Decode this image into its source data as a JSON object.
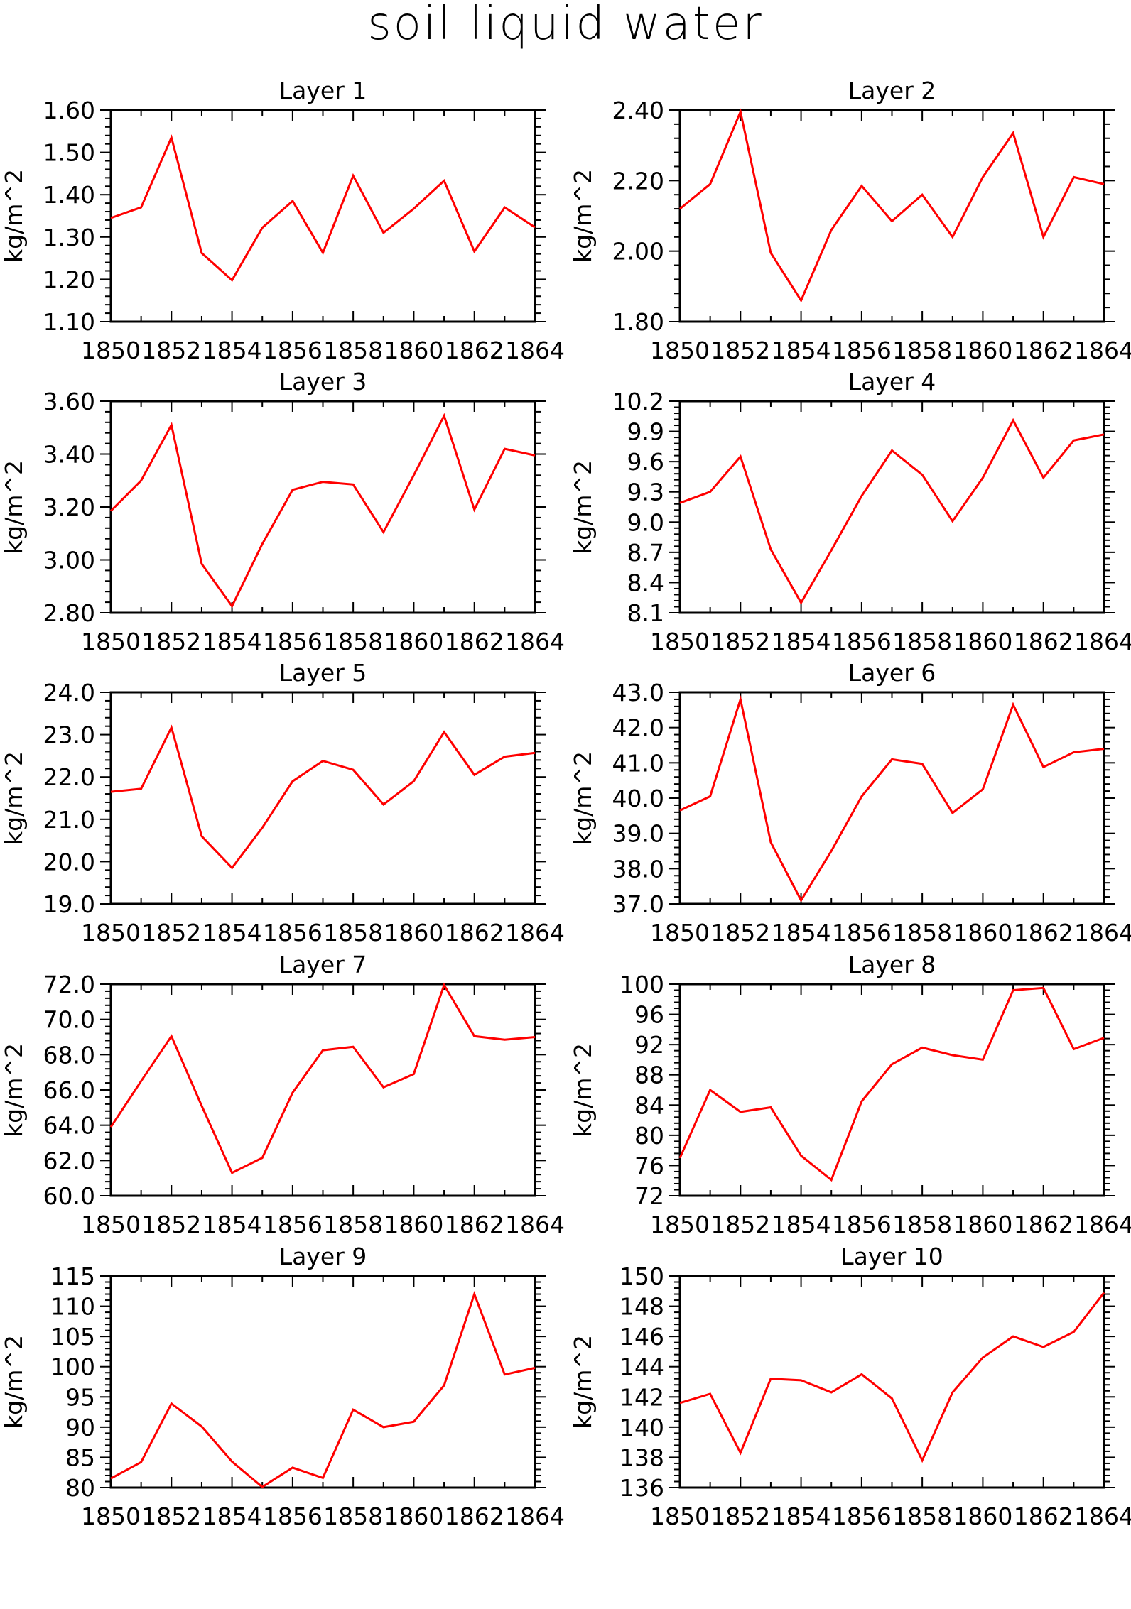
{
  "title": "soil liquid water",
  "chart_data": [
    {
      "type": "line",
      "title": "Layer 1",
      "ylabel": "kg/m^2",
      "x": [
        1850,
        1851,
        1852,
        1853,
        1854,
        1855,
        1856,
        1857,
        1858,
        1859,
        1860,
        1861,
        1862,
        1863,
        1864
      ],
      "x_ticks": [
        1850,
        1852,
        1854,
        1856,
        1858,
        1860,
        1862,
        1864
      ],
      "ylim": [
        1.1,
        1.6
      ],
      "y_ticks": [
        "1.10",
        "1.20",
        "1.30",
        "1.40",
        "1.50",
        "1.60"
      ],
      "series": [
        {
          "color": "#ff0000",
          "values": [
            1.345,
            1.37,
            1.535,
            1.262,
            1.198,
            1.322,
            1.385,
            1.263,
            1.445,
            1.31,
            1.367,
            1.433,
            1.266,
            1.37,
            1.323
          ]
        }
      ]
    },
    {
      "type": "line",
      "title": "Layer 2",
      "ylabel": "kg/m^2",
      "x": [
        1850,
        1851,
        1852,
        1853,
        1854,
        1855,
        1856,
        1857,
        1858,
        1859,
        1860,
        1861,
        1862,
        1863,
        1864
      ],
      "x_ticks": [
        1850,
        1852,
        1854,
        1856,
        1858,
        1860,
        1862,
        1864
      ],
      "ylim": [
        1.8,
        2.4
      ],
      "y_ticks": [
        "1.80",
        "2.00",
        "2.20",
        "2.40"
      ],
      "series": [
        {
          "color": "#ff0000",
          "values": [
            2.12,
            2.19,
            2.395,
            1.995,
            1.86,
            2.06,
            2.185,
            2.085,
            2.16,
            2.04,
            2.21,
            2.335,
            2.04,
            2.21,
            2.19
          ]
        }
      ]
    },
    {
      "type": "line",
      "title": "Layer 3",
      "ylabel": "kg/m^2",
      "x": [
        1850,
        1851,
        1852,
        1853,
        1854,
        1855,
        1856,
        1857,
        1858,
        1859,
        1860,
        1861,
        1862,
        1863,
        1864
      ],
      "x_ticks": [
        1850,
        1852,
        1854,
        1856,
        1858,
        1860,
        1862,
        1864
      ],
      "ylim": [
        2.8,
        3.6
      ],
      "y_ticks": [
        "2.80",
        "3.00",
        "3.20",
        "3.40",
        "3.60"
      ],
      "series": [
        {
          "color": "#ff0000",
          "values": [
            3.185,
            3.3,
            3.51,
            2.985,
            2.825,
            3.06,
            3.265,
            3.295,
            3.285,
            3.105,
            3.32,
            3.545,
            3.19,
            3.42,
            3.395
          ]
        }
      ]
    },
    {
      "type": "line",
      "title": "Layer 4",
      "ylabel": "kg/m^2",
      "x": [
        1850,
        1851,
        1852,
        1853,
        1854,
        1855,
        1856,
        1857,
        1858,
        1859,
        1860,
        1861,
        1862,
        1863,
        1864
      ],
      "x_ticks": [
        1850,
        1852,
        1854,
        1856,
        1858,
        1860,
        1862,
        1864
      ],
      "ylim": [
        8.1,
        10.2
      ],
      "y_ticks": [
        "8.1",
        "8.4",
        "8.7",
        "9.0",
        "9.3",
        "9.6",
        "9.9",
        "10.2"
      ],
      "series": [
        {
          "color": "#ff0000",
          "values": [
            9.19,
            9.3,
            9.65,
            8.73,
            8.2,
            8.72,
            9.26,
            9.71,
            9.47,
            9.01,
            9.44,
            10.01,
            9.44,
            9.81,
            9.87
          ]
        }
      ]
    },
    {
      "type": "line",
      "title": "Layer 5",
      "ylabel": "kg/m^2",
      "x": [
        1850,
        1851,
        1852,
        1853,
        1854,
        1855,
        1856,
        1857,
        1858,
        1859,
        1860,
        1861,
        1862,
        1863,
        1864
      ],
      "x_ticks": [
        1850,
        1852,
        1854,
        1856,
        1858,
        1860,
        1862,
        1864
      ],
      "ylim": [
        19.0,
        24.0
      ],
      "y_ticks": [
        "19.0",
        "20.0",
        "21.0",
        "22.0",
        "23.0",
        "24.0"
      ],
      "series": [
        {
          "color": "#ff0000",
          "values": [
            21.65,
            21.72,
            23.17,
            20.6,
            19.85,
            20.8,
            21.9,
            22.38,
            22.17,
            21.35,
            21.9,
            23.06,
            22.05,
            22.48,
            22.57
          ]
        }
      ]
    },
    {
      "type": "line",
      "title": "Layer 6",
      "ylabel": "kg/m^2",
      "x": [
        1850,
        1851,
        1852,
        1853,
        1854,
        1855,
        1856,
        1857,
        1858,
        1859,
        1860,
        1861,
        1862,
        1863,
        1864
      ],
      "x_ticks": [
        1850,
        1852,
        1854,
        1856,
        1858,
        1860,
        1862,
        1864
      ],
      "ylim": [
        37.0,
        43.0
      ],
      "y_ticks": [
        "37.0",
        "38.0",
        "39.0",
        "40.0",
        "41.0",
        "42.0",
        "43.0"
      ],
      "series": [
        {
          "color": "#ff0000",
          "values": [
            39.65,
            40.05,
            42.8,
            38.75,
            37.1,
            38.5,
            40.05,
            41.1,
            40.97,
            39.58,
            40.25,
            42.65,
            40.88,
            41.3,
            41.4
          ]
        }
      ]
    },
    {
      "type": "line",
      "title": "Layer 7",
      "ylabel": "kg/m^2",
      "x": [
        1850,
        1851,
        1852,
        1853,
        1854,
        1855,
        1856,
        1857,
        1858,
        1859,
        1860,
        1861,
        1862,
        1863,
        1864
      ],
      "x_ticks": [
        1850,
        1852,
        1854,
        1856,
        1858,
        1860,
        1862,
        1864
      ],
      "ylim": [
        60.0,
        72.0
      ],
      "y_ticks": [
        "60.0",
        "62.0",
        "64.0",
        "66.0",
        "68.0",
        "70.0",
        "72.0"
      ],
      "series": [
        {
          "color": "#ff0000",
          "values": [
            63.9,
            66.5,
            69.05,
            65.1,
            61.3,
            62.15,
            65.85,
            68.25,
            68.45,
            66.15,
            66.9,
            71.95,
            69.05,
            68.85,
            69.0
          ]
        }
      ]
    },
    {
      "type": "line",
      "title": "Layer 8",
      "ylabel": "kg/m^2",
      "x": [
        1850,
        1851,
        1852,
        1853,
        1854,
        1855,
        1856,
        1857,
        1858,
        1859,
        1860,
        1861,
        1862,
        1863,
        1864
      ],
      "x_ticks": [
        1850,
        1852,
        1854,
        1856,
        1858,
        1860,
        1862,
        1864
      ],
      "ylim": [
        72,
        100
      ],
      "y_ticks": [
        "72",
        "76",
        "80",
        "84",
        "88",
        "92",
        "96",
        "100"
      ],
      "series": [
        {
          "color": "#ff0000",
          "values": [
            77.0,
            86.0,
            83.1,
            83.7,
            77.3,
            74.1,
            84.5,
            89.4,
            91.6,
            90.6,
            90.0,
            99.2,
            99.5,
            91.4,
            92.9
          ]
        }
      ]
    },
    {
      "type": "line",
      "title": "Layer 9",
      "ylabel": "kg/m^2",
      "x": [
        1850,
        1851,
        1852,
        1853,
        1854,
        1855,
        1856,
        1857,
        1858,
        1859,
        1860,
        1861,
        1862,
        1863,
        1864
      ],
      "x_ticks": [
        1850,
        1852,
        1854,
        1856,
        1858,
        1860,
        1862,
        1864
      ],
      "ylim": [
        80,
        115
      ],
      "y_ticks": [
        "80",
        "85",
        "90",
        "95",
        "100",
        "105",
        "110",
        "115"
      ],
      "series": [
        {
          "color": "#ff0000",
          "values": [
            81.5,
            84.2,
            93.9,
            90.1,
            84.3,
            80.1,
            83.3,
            81.6,
            92.9,
            90.0,
            90.9,
            96.9,
            112.0,
            98.7,
            99.8
          ]
        }
      ]
    },
    {
      "type": "line",
      "title": "Layer 10",
      "ylabel": "kg/m^2",
      "x": [
        1850,
        1851,
        1852,
        1853,
        1854,
        1855,
        1856,
        1857,
        1858,
        1859,
        1860,
        1861,
        1862,
        1863,
        1864
      ],
      "x_ticks": [
        1850,
        1852,
        1854,
        1856,
        1858,
        1860,
        1862,
        1864
      ],
      "ylim": [
        136,
        150
      ],
      "y_ticks": [
        "136",
        "138",
        "140",
        "142",
        "144",
        "146",
        "148",
        "150"
      ],
      "series": [
        {
          "color": "#ff0000",
          "values": [
            141.6,
            142.2,
            138.3,
            143.2,
            143.1,
            142.3,
            143.5,
            141.9,
            137.8,
            142.3,
            144.6,
            146.0,
            145.3,
            146.3,
            148.9
          ]
        }
      ]
    }
  ]
}
